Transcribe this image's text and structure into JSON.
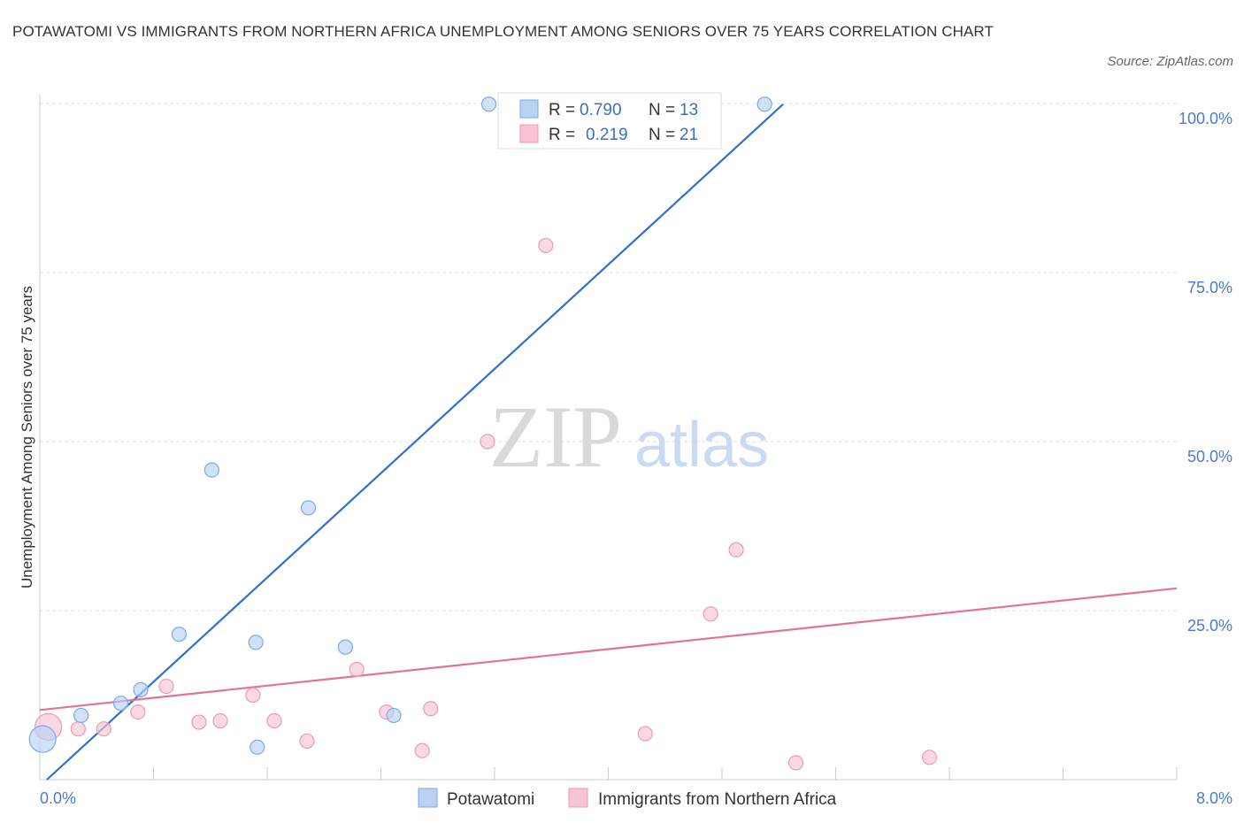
{
  "title": "POTAWATOMI VS IMMIGRANTS FROM NORTHERN AFRICA UNEMPLOYMENT AMONG SENIORS OVER 75 YEARS CORRELATION CHART",
  "source": "Source: ZipAtlas.com",
  "watermark": {
    "part1": "ZIP",
    "part2": "atlas"
  },
  "colors": {
    "blue_fill": "#b8d2f5",
    "blue_stroke": "#7fa9e2",
    "blue_line": "#2e6fcf",
    "pink_fill": "#f8c4d3",
    "pink_stroke": "#ee9ab4",
    "pink_line": "#e2729a",
    "grid": "#e2e2e2",
    "tick_text": "#4a7cc9"
  },
  "legend": {
    "rows": [
      {
        "r_label": "R =",
        "r_value": "0.790",
        "n_label": "N =",
        "n_value": "13"
      },
      {
        "r_label": "R =",
        "r_value": "0.219",
        "n_label": "N =",
        "n_value": "21"
      }
    ]
  },
  "chart_data": {
    "type": "scatter",
    "title": "POTAWATOMI VS IMMIGRANTS FROM NORTHERN AFRICA UNEMPLOYMENT AMONG SENIORS OVER 75 YEARS CORRELATION CHART",
    "xlabel": "",
    "ylabel": "Unemployment Among Seniors over 75 years",
    "xlim": [
      0,
      8
    ],
    "ylim": [
      0,
      100
    ],
    "x_tick_labels": [
      "0.0%",
      "8.0%"
    ],
    "y_tick_labels": [
      "25.0%",
      "50.0%",
      "75.0%",
      "100.0%"
    ],
    "y_ticks": [
      25,
      50,
      75,
      100
    ],
    "series": [
      {
        "name": "Potawatomi",
        "color": "blue",
        "points": [
          {
            "x": 0.02,
            "y": 6.0,
            "size": "large"
          },
          {
            "x": 0.29,
            "y": 9.5
          },
          {
            "x": 0.57,
            "y": 11.3
          },
          {
            "x": 0.71,
            "y": 13.3
          },
          {
            "x": 0.98,
            "y": 21.5
          },
          {
            "x": 1.21,
            "y": 45.8
          },
          {
            "x": 1.52,
            "y": 20.3
          },
          {
            "x": 1.53,
            "y": 4.8
          },
          {
            "x": 1.89,
            "y": 40.2
          },
          {
            "x": 2.15,
            "y": 19.6
          },
          {
            "x": 2.49,
            "y": 9.5
          },
          {
            "x": 3.16,
            "y": 99.9
          },
          {
            "x": 5.1,
            "y": 99.9
          }
        ],
        "trend": {
          "x0": 0.05,
          "y0": 0.0,
          "x1": 5.23,
          "y1": 99.9
        }
      },
      {
        "name": "Immigrants from Northern Africa",
        "color": "pink",
        "points": [
          {
            "x": 0.06,
            "y": 7.8,
            "size": "large"
          },
          {
            "x": 0.27,
            "y": 7.5
          },
          {
            "x": 0.45,
            "y": 7.5
          },
          {
            "x": 0.69,
            "y": 10.0
          },
          {
            "x": 0.89,
            "y": 13.8
          },
          {
            "x": 1.12,
            "y": 8.5
          },
          {
            "x": 1.27,
            "y": 8.7
          },
          {
            "x": 1.5,
            "y": 12.5
          },
          {
            "x": 1.65,
            "y": 8.7
          },
          {
            "x": 1.88,
            "y": 5.7
          },
          {
            "x": 2.23,
            "y": 16.3
          },
          {
            "x": 2.44,
            "y": 10.0
          },
          {
            "x": 2.69,
            "y": 4.3
          },
          {
            "x": 2.75,
            "y": 10.5
          },
          {
            "x": 3.15,
            "y": 50.0
          },
          {
            "x": 3.56,
            "y": 79.0
          },
          {
            "x": 4.26,
            "y": 6.8
          },
          {
            "x": 4.72,
            "y": 24.5
          },
          {
            "x": 4.9,
            "y": 34.0
          },
          {
            "x": 5.32,
            "y": 2.5
          },
          {
            "x": 6.26,
            "y": 3.3
          }
        ],
        "trend": {
          "x0": 0.0,
          "y0": 10.3,
          "x1": 8.0,
          "y1": 28.3
        }
      }
    ]
  }
}
